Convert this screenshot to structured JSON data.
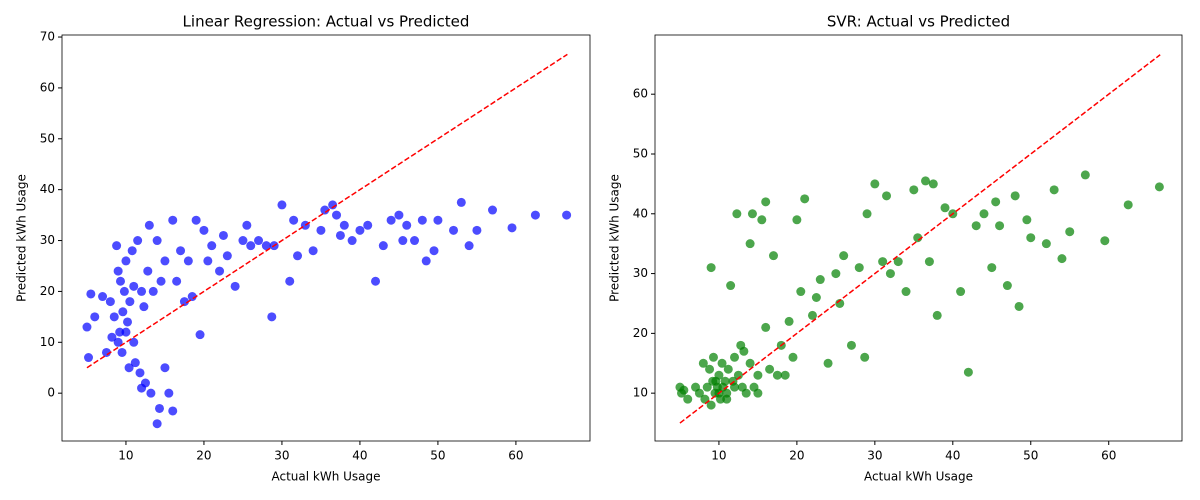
{
  "chart_data": [
    {
      "type": "scatter",
      "title": "Linear Regression: Actual vs Predicted",
      "xlabel": "Actual kWh Usage",
      "ylabel": "Predicted kWh Usage",
      "xlim": [
        1.8,
        69.5
      ],
      "ylim": [
        -9.4,
        70.4
      ],
      "xticks": [
        10,
        20,
        30,
        40,
        50,
        60
      ],
      "yticks": [
        0,
        10,
        20,
        30,
        40,
        50,
        60,
        70
      ],
      "color": "#0000ff",
      "opacity": 0.7,
      "x": [
        5,
        5.2,
        5.5,
        6,
        7,
        7.5,
        8,
        8.2,
        8.5,
        8.8,
        9,
        9,
        9.2,
        9.3,
        9.5,
        9.6,
        9.8,
        10,
        10,
        10.2,
        10.4,
        10.5,
        10.8,
        11,
        11,
        11.2,
        11.5,
        11.8,
        12,
        12,
        12.3,
        12.5,
        12.8,
        13,
        13.2,
        13.5,
        14,
        14,
        14.3,
        14.5,
        15,
        15,
        15.5,
        16,
        16,
        16.5,
        17,
        17.5,
        18,
        18.5,
        19,
        19.5,
        20,
        20.5,
        21,
        22,
        22.5,
        23,
        24,
        25,
        25.5,
        26,
        27,
        28,
        28.7,
        29,
        30,
        31,
        31.5,
        32,
        33,
        34,
        35,
        35.5,
        36.5,
        37,
        37.5,
        38,
        39,
        40,
        41,
        42,
        43,
        44,
        45,
        45.5,
        46,
        47,
        48,
        48.5,
        49.5,
        50,
        52,
        53,
        54,
        55,
        57,
        59.5,
        62.5,
        66.5
      ],
      "values": [
        13,
        7,
        19.5,
        15,
        19,
        8,
        18,
        11,
        15,
        29,
        10,
        24,
        12,
        22,
        8,
        16,
        20,
        12,
        26,
        14,
        5,
        18,
        28,
        10,
        21,
        6,
        30,
        4,
        20,
        1,
        17,
        2,
        24,
        33,
        0,
        20,
        -6,
        30,
        -3,
        22,
        5,
        26,
        0,
        34,
        -3.5,
        22,
        28,
        18,
        26,
        19,
        34,
        11.5,
        32,
        26,
        29,
        24,
        31,
        27,
        21,
        30,
        33,
        29,
        30,
        29,
        15,
        29,
        37,
        22,
        34,
        27,
        33,
        28,
        32,
        36,
        37,
        35,
        31,
        33,
        30,
        32,
        33,
        22,
        29,
        34,
        35,
        30,
        33,
        30,
        34,
        26,
        28,
        34,
        32,
        37.5,
        29,
        32,
        36,
        32.5,
        35,
        35
      ],
      "reference_line": {
        "x": [
          5,
          66.6
        ],
        "values": [
          5,
          66.6
        ],
        "color": "#ff0000",
        "style": "dashed"
      }
    },
    {
      "type": "scatter",
      "title": "SVR: Actual vs Predicted",
      "xlabel": "Actual kWh Usage",
      "ylabel": "Predicted kWh Usage",
      "xlim": [
        1.8,
        69.4
      ],
      "ylim": [
        2.0,
        69.9
      ],
      "xticks": [
        10,
        20,
        30,
        40,
        50,
        60
      ],
      "yticks": [
        10,
        20,
        30,
        40,
        50,
        60
      ],
      "color": "#008000",
      "opacity": 0.7,
      "x": [
        5,
        5.2,
        5.5,
        6,
        7,
        7.5,
        8,
        8.2,
        8.5,
        8.8,
        9,
        9,
        9.2,
        9.3,
        9.5,
        9.6,
        9.8,
        10,
        10,
        10.2,
        10.4,
        10.5,
        10.8,
        11,
        11,
        11.2,
        11.5,
        11.8,
        12,
        12,
        12.3,
        12.5,
        12.8,
        13,
        13.2,
        13.5,
        14,
        14,
        14.3,
        14.5,
        15,
        15,
        15.5,
        16,
        16,
        16.5,
        17,
        17.5,
        18,
        18.5,
        19,
        19.5,
        20,
        20.5,
        21,
        22,
        22.5,
        23,
        24,
        25,
        25.5,
        26,
        27,
        28,
        28.7,
        29,
        30,
        31,
        31.5,
        32,
        33,
        34,
        35,
        35.5,
        36.5,
        37,
        37.5,
        38,
        39,
        40,
        41,
        42,
        43,
        44,
        45,
        45.5,
        46,
        47,
        48,
        48.5,
        49.5,
        50,
        52,
        53,
        54,
        55,
        57,
        59.5,
        62.5,
        66.5
      ],
      "values": [
        11,
        10,
        10.5,
        9,
        11,
        10,
        15,
        9,
        11,
        14,
        8,
        31,
        12,
        16,
        10,
        12,
        11,
        10,
        13,
        9,
        15,
        11,
        12,
        10,
        9,
        14,
        28,
        12,
        16,
        11,
        40,
        13,
        18,
        11,
        17,
        10,
        35,
        15,
        40,
        11,
        13,
        10,
        39,
        21,
        42,
        14,
        33,
        13,
        18,
        13,
        22,
        16,
        39,
        27,
        42.5,
        23,
        26,
        29,
        15,
        30,
        25,
        33,
        18,
        31,
        16,
        40,
        45,
        32,
        43,
        30,
        32,
        27,
        44,
        36,
        45.5,
        32,
        45,
        23,
        41,
        40,
        27,
        13.5,
        38,
        40,
        31,
        42,
        38,
        28,
        43,
        24.5,
        39,
        36,
        35,
        44,
        32.5,
        37,
        46.5,
        35.5,
        41.5,
        44.5
      ],
      "reference_line": {
        "x": [
          5,
          66.6
        ],
        "values": [
          5,
          66.6
        ],
        "color": "#ff0000",
        "style": "dashed"
      }
    }
  ]
}
